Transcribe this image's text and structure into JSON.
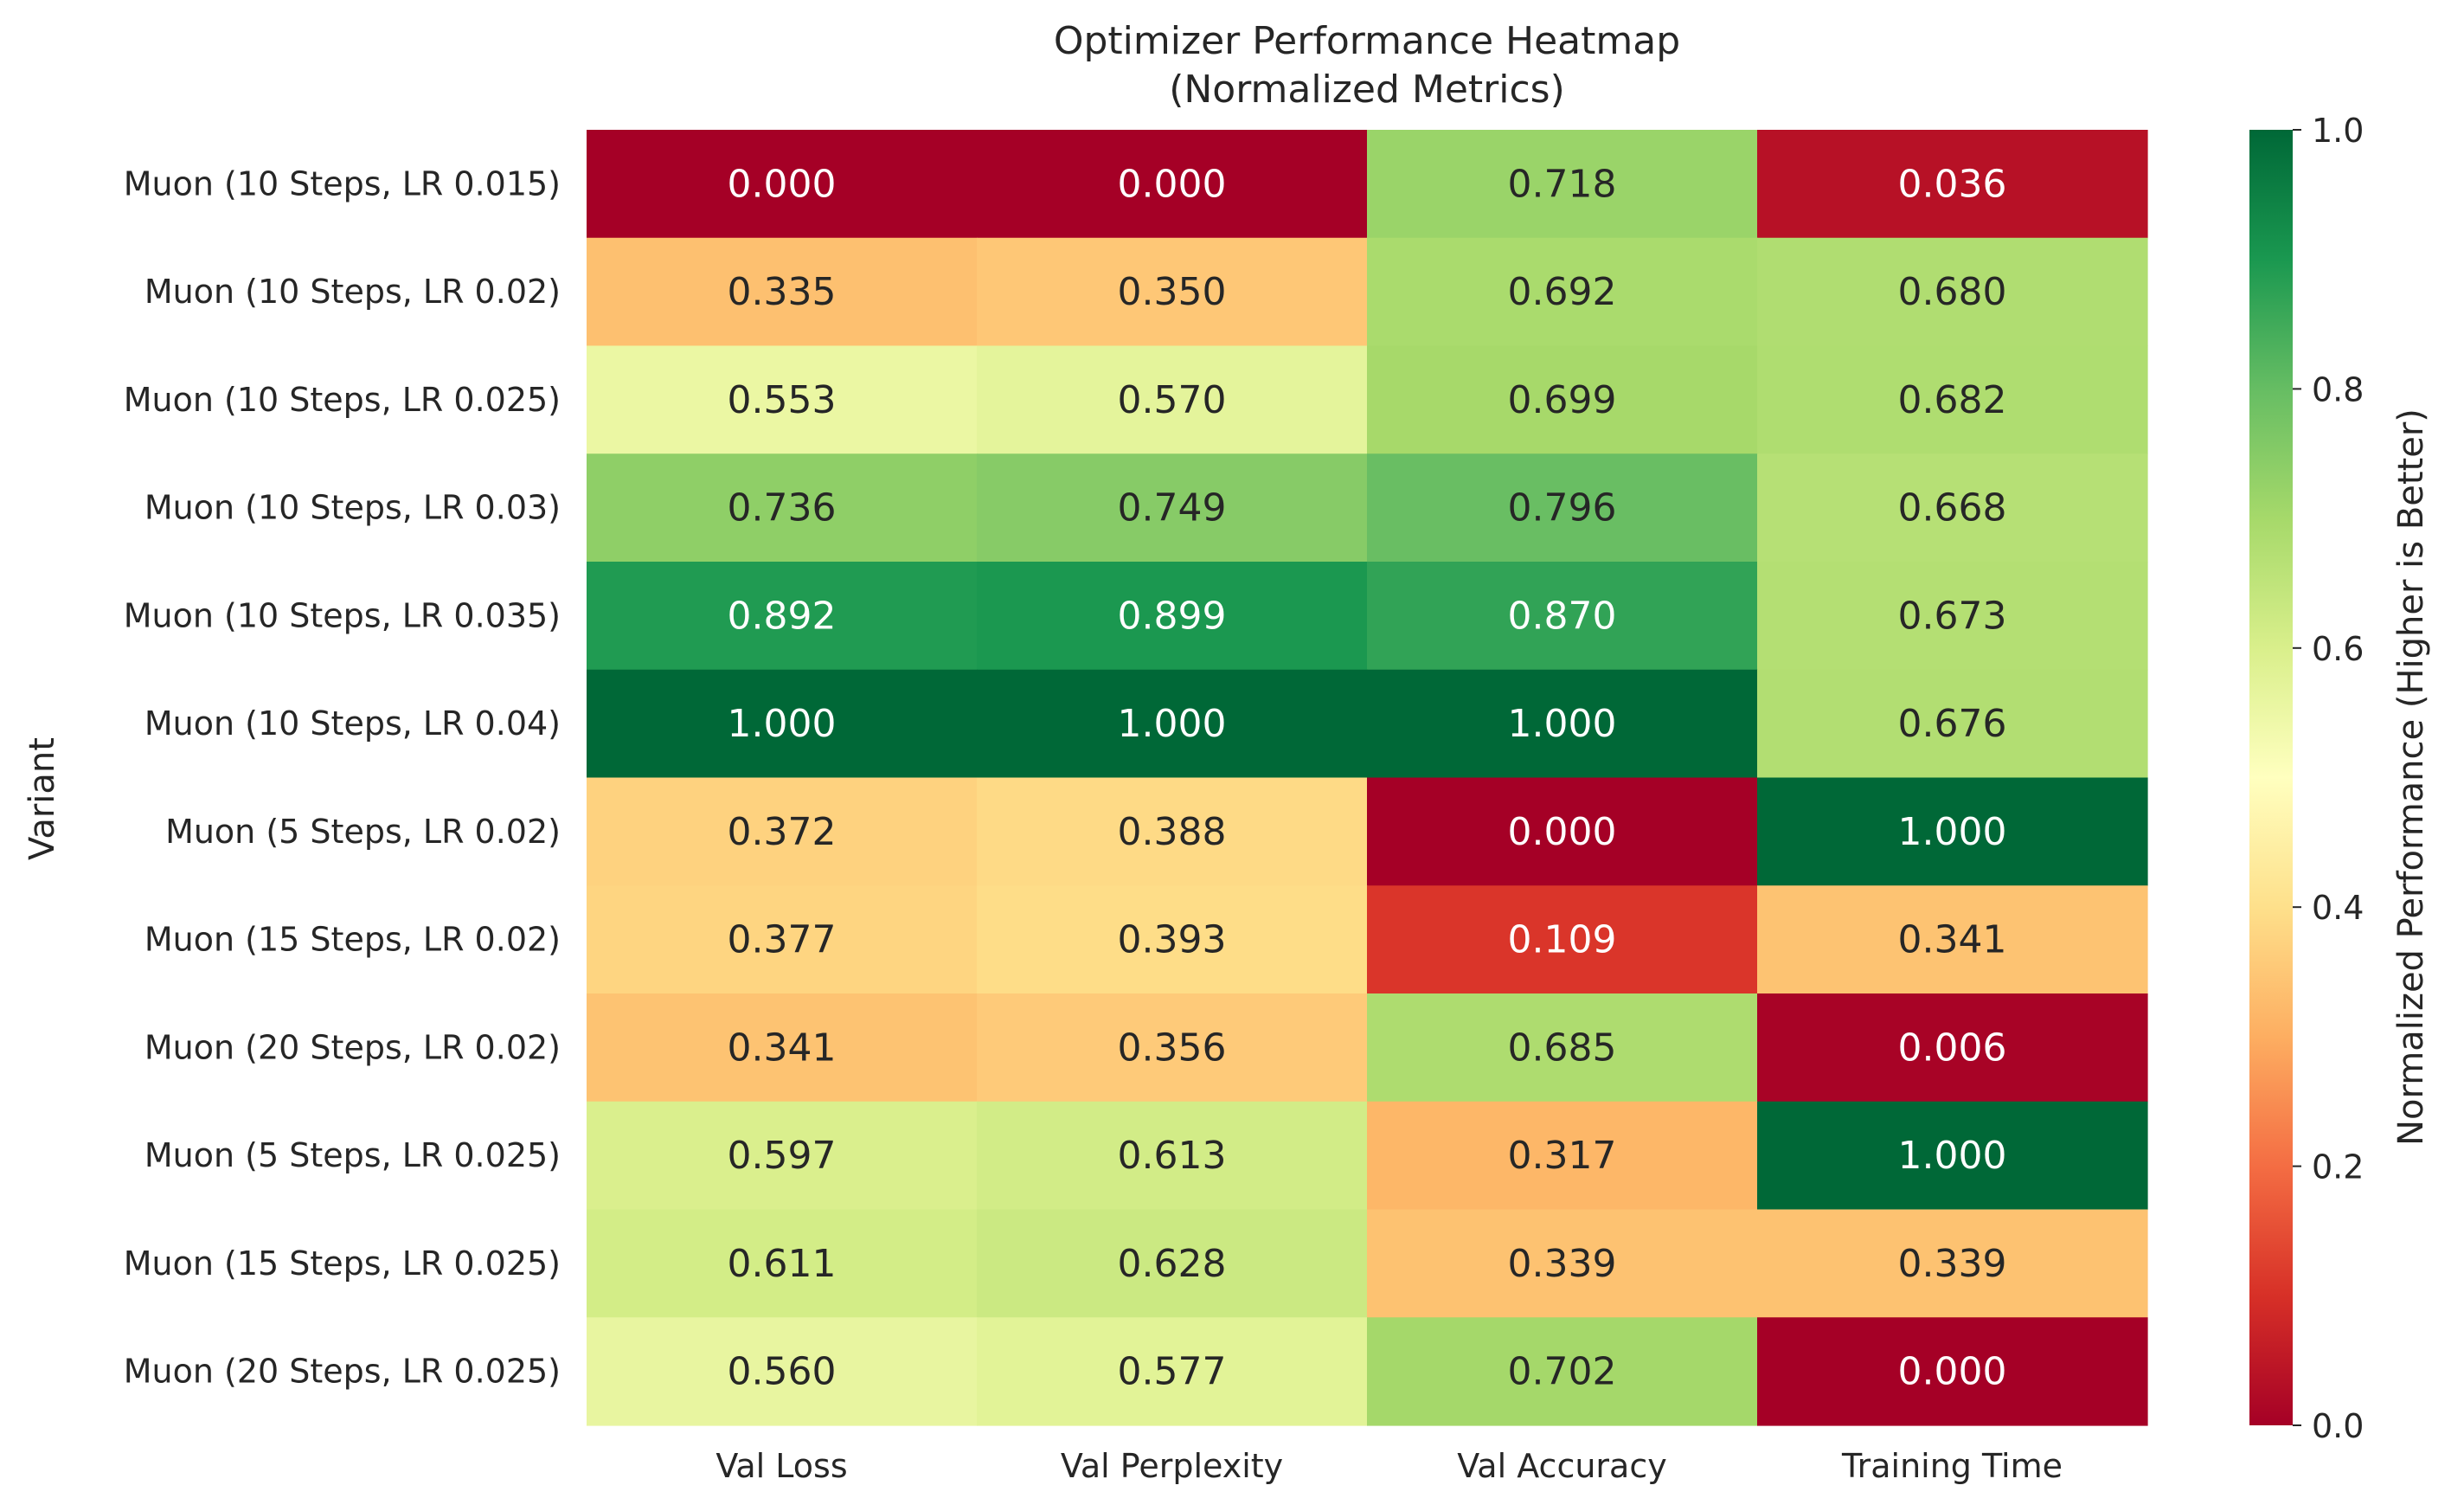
{
  "chart_data": {
    "type": "heatmap",
    "title": "Optimizer Performance Heatmap",
    "subtitle": "(Normalized Metrics)",
    "ylabel": "Variant",
    "columns": [
      "Val Loss",
      "Val Perplexity",
      "Val Accuracy",
      "Training Time"
    ],
    "rows": [
      "Muon (10 Steps, LR 0.015)",
      "Muon (10 Steps, LR 0.02)",
      "Muon (10 Steps, LR 0.025)",
      "Muon (10 Steps, LR 0.03)",
      "Muon (10 Steps, LR 0.035)",
      "Muon (10 Steps, LR 0.04)",
      "Muon (5 Steps, LR 0.02)",
      "Muon (15 Steps, LR 0.02)",
      "Muon (20 Steps, LR 0.02)",
      "Muon (5 Steps, LR 0.025)",
      "Muon (15 Steps, LR 0.025)",
      "Muon (20 Steps, LR 0.025)"
    ],
    "values": [
      [
        0.0,
        0.0,
        0.718,
        0.036
      ],
      [
        0.335,
        0.35,
        0.692,
        0.68
      ],
      [
        0.553,
        0.57,
        0.699,
        0.682
      ],
      [
        0.736,
        0.749,
        0.796,
        0.668
      ],
      [
        0.892,
        0.899,
        0.87,
        0.673
      ],
      [
        1.0,
        1.0,
        1.0,
        0.676
      ],
      [
        0.372,
        0.388,
        0.0,
        1.0
      ],
      [
        0.377,
        0.393,
        0.109,
        0.341
      ],
      [
        0.341,
        0.356,
        0.685,
        0.006
      ],
      [
        0.597,
        0.613,
        0.317,
        1.0
      ],
      [
        0.611,
        0.628,
        0.339,
        0.339
      ],
      [
        0.56,
        0.577,
        0.702,
        0.0
      ]
    ],
    "value_format": "3 decimals",
    "colormap": "RdYlGn",
    "colorbar": {
      "label": "Normalized Performance (Higher is Better)",
      "range": [
        0.0,
        1.0
      ],
      "ticks": [
        "0.0",
        "0.2",
        "0.4",
        "0.6",
        "0.8",
        "1.0"
      ]
    },
    "colors": {
      "text_dark": "#262626",
      "text_light": "#ffffff",
      "colormap_stops": [
        "#a50026",
        "#d73027",
        "#f46d43",
        "#fdae61",
        "#fee08b",
        "#ffffbf",
        "#d9ef8b",
        "#a6d96a",
        "#66bd63",
        "#1a9850",
        "#006837"
      ]
    }
  }
}
